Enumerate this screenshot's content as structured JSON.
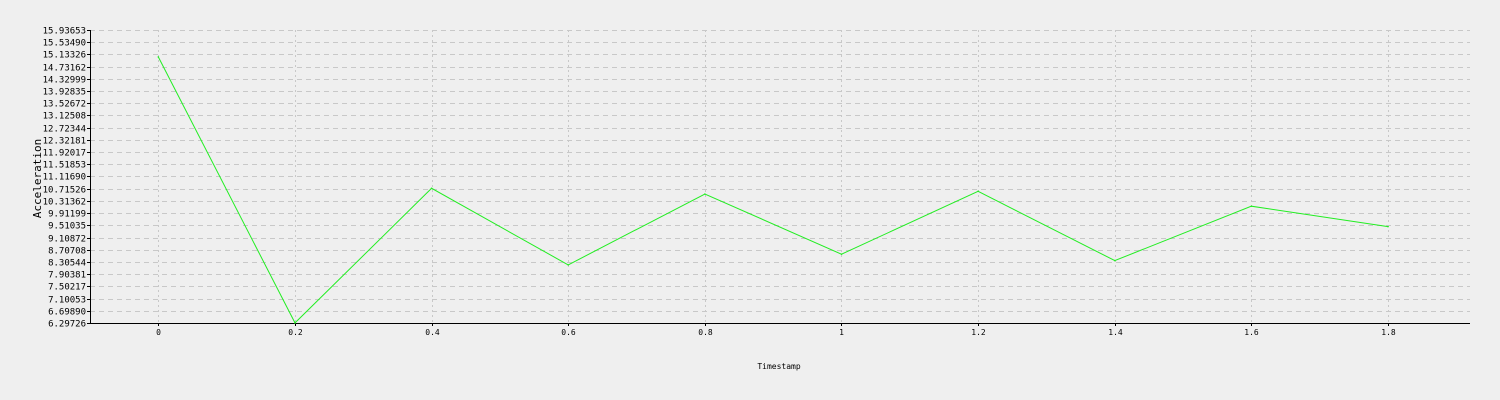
{
  "chart_data": {
    "type": "line",
    "title": "",
    "xlabel": "Timestamp",
    "ylabel": "Acceleration",
    "x": [
      0,
      0.2,
      0.4,
      0.6,
      0.8,
      1.0,
      1.2,
      1.4,
      1.6,
      1.8
    ],
    "x_tick_labels": [
      "0",
      "0.2",
      "0.4",
      "0.6",
      "0.8",
      "1",
      "1.2",
      "1.4",
      "1.6",
      "1.8"
    ],
    "xlim": [
      -0.1,
      1.92
    ],
    "y_ticks": [
      6.29726,
      6.6989,
      7.10053,
      7.50217,
      7.90381,
      8.30544,
      8.70708,
      9.10872,
      9.51035,
      9.91199,
      10.31362,
      10.71526,
      11.1169,
      11.51853,
      11.92017,
      12.32181,
      12.72344,
      13.12508,
      13.52672,
      13.92835,
      14.32999,
      14.73162,
      15.13326,
      15.5349,
      15.93653
    ],
    "y_tick_labels": [
      "6.29726",
      "6.69890",
      "7.10053",
      "7.50217",
      "7.90381",
      "8.30544",
      "8.70708",
      "9.10872",
      "9.51035",
      "9.91199",
      "10.31362",
      "10.71526",
      "11.11690",
      "11.51853",
      "11.92017",
      "12.32181",
      "12.72344",
      "13.12508",
      "13.52672",
      "13.92835",
      "14.32999",
      "14.73162",
      "15.13326",
      "15.53490",
      "15.93653"
    ],
    "ylim": [
      6.29726,
      15.93653
    ],
    "grid": true,
    "legend": "none",
    "series": [
      {
        "values": [
          15.05,
          6.3,
          10.73,
          8.21,
          10.54,
          8.56,
          10.63,
          8.35,
          10.14,
          9.47
        ],
        "color": "#22ee22"
      }
    ],
    "colors": {
      "background": "#efefef",
      "axis": "#000000",
      "grid": "#c8c8c8"
    }
  }
}
